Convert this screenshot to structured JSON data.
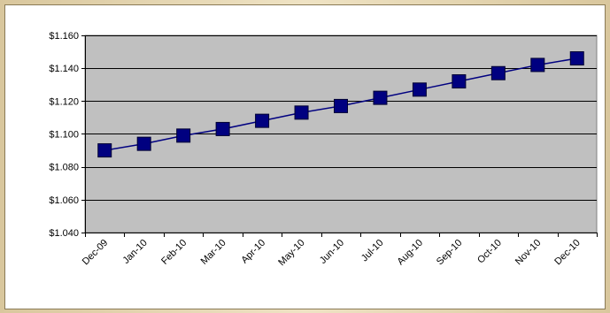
{
  "chart_data": {
    "type": "line",
    "title": "",
    "xlabel": "",
    "ylabel": "",
    "categories": [
      "Dec-09",
      "Jan-10",
      "Feb-10",
      "Mar-10",
      "Apr-10",
      "May-10",
      "Jun-10",
      "Jul-10",
      "Aug-10",
      "Sep-10",
      "Oct-10",
      "Nov-10",
      "Dec-10"
    ],
    "y_tick_labels": [
      "$1.040",
      "$1.060",
      "$1.080",
      "$1.100",
      "$1.120",
      "$1.140",
      "$1.160"
    ],
    "y_ticks": [
      1.04,
      1.06,
      1.08,
      1.1,
      1.12,
      1.14,
      1.16
    ],
    "ylim": [
      1.04,
      1.16
    ],
    "series": [
      {
        "values": [
          1.09,
          1.094,
          1.099,
          1.103,
          1.108,
          1.113,
          1.117,
          1.122,
          1.127,
          1.132,
          1.137,
          1.142,
          1.146
        ],
        "color": "#000080"
      }
    ],
    "grid": true,
    "legend": "none",
    "plot_background": "#c0c0c0"
  }
}
